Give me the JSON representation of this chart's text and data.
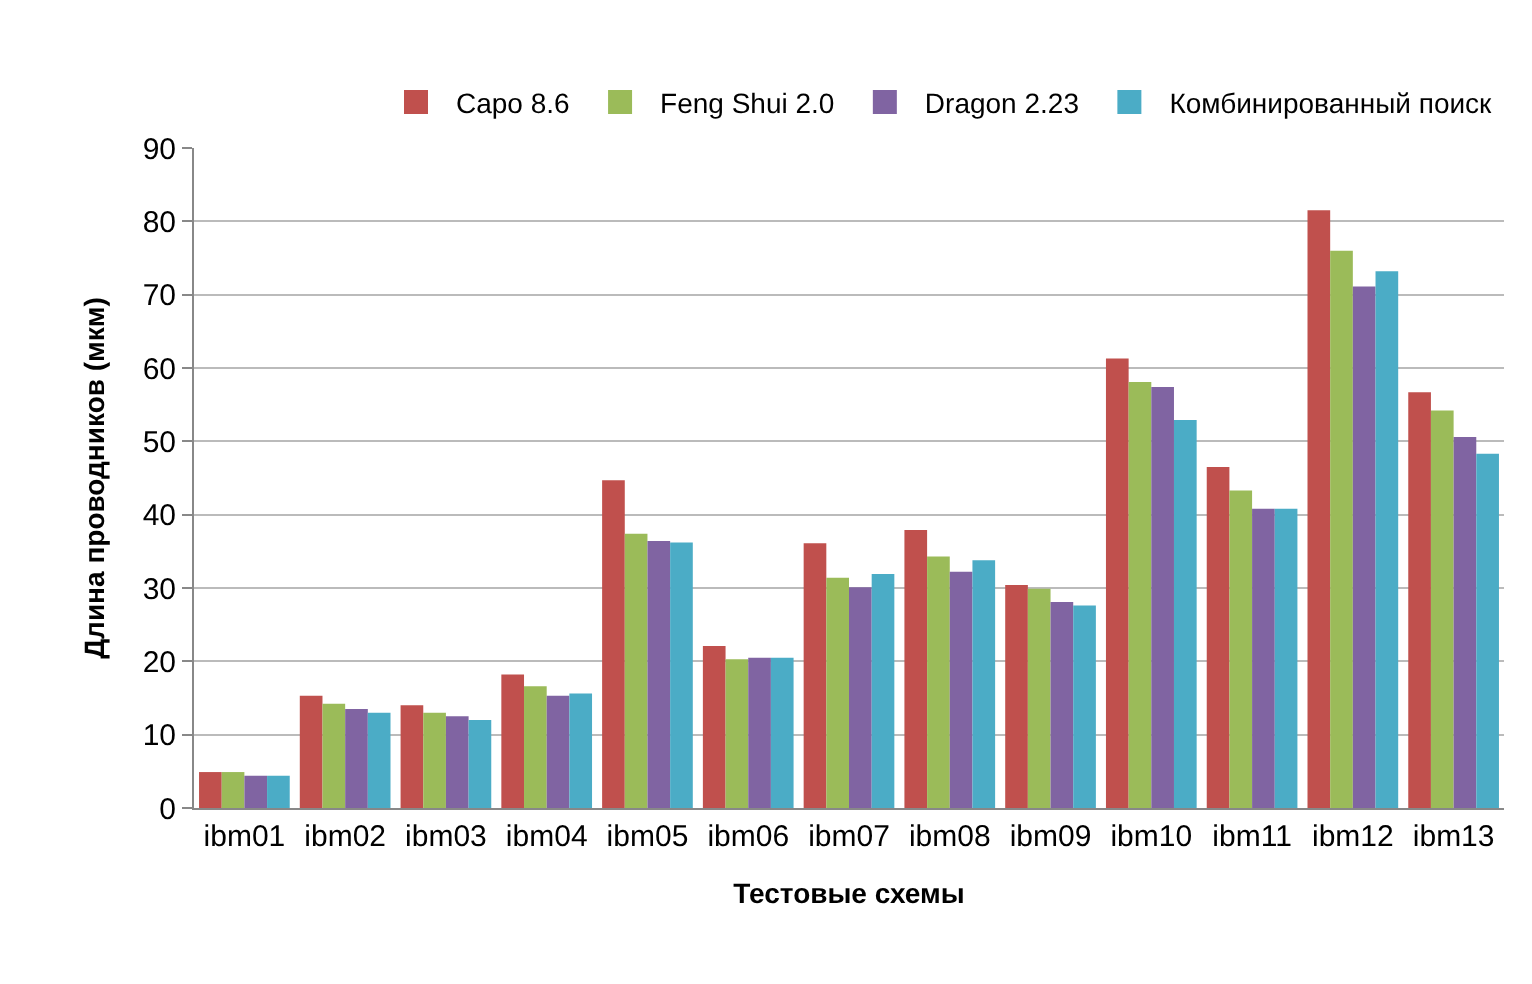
{
  "chart_data": {
    "type": "bar",
    "xlabel": "Тестовые схемы",
    "ylabel": "Длина проводников (мкм)",
    "categories": [
      "ibm01",
      "ibm02",
      "ibm03",
      "ibm04",
      "ibm05",
      "ibm06",
      "ibm07",
      "ibm08",
      "ibm09",
      "ibm10",
      "ibm11",
      "ibm12",
      "ibm13"
    ],
    "series": [
      {
        "name": "Capo 8.6",
        "color": "#c0504d",
        "values": [
          4.9,
          15.3,
          14.0,
          18.2,
          44.7,
          22.1,
          36.1,
          37.9,
          30.4,
          61.3,
          46.5,
          81.5,
          56.7
        ]
      },
      {
        "name": "Feng Shui 2.0",
        "color": "#9bbb59",
        "values": [
          4.9,
          14.2,
          13.0,
          16.6,
          37.4,
          20.3,
          31.4,
          34.3,
          29.9,
          58.1,
          43.3,
          76.0,
          54.2
        ]
      },
      {
        "name": "Dragon 2.23",
        "color": "#8064a2",
        "values": [
          4.4,
          13.5,
          12.5,
          15.3,
          36.4,
          20.5,
          30.1,
          32.2,
          28.1,
          57.4,
          40.8,
          71.1,
          50.6
        ]
      },
      {
        "name": "Комбинированный поиск",
        "color": "#4bacc6",
        "values": [
          4.4,
          13.0,
          12.0,
          15.6,
          36.2,
          20.5,
          31.9,
          33.8,
          27.6,
          52.9,
          40.8,
          73.2,
          48.3
        ]
      }
    ],
    "ylim": [
      0,
      90
    ],
    "yticks": [
      0,
      10,
      20,
      30,
      40,
      50,
      60,
      70,
      80,
      90
    ],
    "grid": "y",
    "legend": "top right"
  }
}
